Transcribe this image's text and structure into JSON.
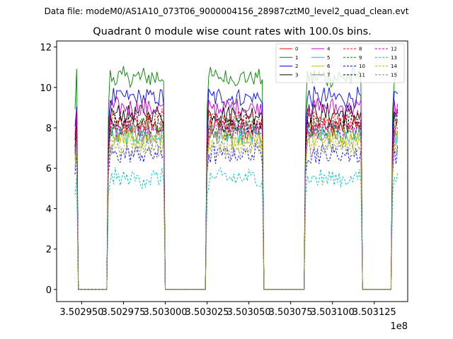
{
  "chart_data": {
    "type": "line",
    "suptitle": "Data file: modeM0/AS1A10_073T06_9000004156_28987cztM0_level2_quad_clean.evt",
    "title": "Quadrant 0 module wise count rates with 100.0s bins.",
    "xlabel": "",
    "ylabel": "",
    "x_offset_label": "1e8",
    "xlim": [
      3.502935,
      3.503145
    ],
    "ylim": [
      -0.6,
      12.3
    ],
    "x_ticks": [
      3.50295,
      3.502975,
      3.503,
      3.503025,
      3.50305,
      3.503075,
      3.5031,
      3.503125
    ],
    "x_tick_labels": [
      "3.502950",
      "3.502975",
      "3.503000",
      "3.503025",
      "3.503050",
      "3.503075",
      "3.503100",
      "3.503125"
    ],
    "y_ticks": [
      0,
      2,
      4,
      6,
      8,
      10,
      12
    ],
    "y_tick_labels": [
      "0",
      "2",
      "4",
      "6",
      "8",
      "10",
      "12"
    ],
    "segments": [
      [
        3.502946,
        3.502947
      ],
      [
        3.502966,
        3.502999
      ],
      [
        3.503025,
        3.503058
      ],
      [
        3.503084,
        3.503117
      ],
      [
        3.503136,
        3.503139
      ]
    ],
    "gap_value": 0,
    "bin_seconds": 100,
    "legend_position": "top-right",
    "series": [
      {
        "name": "0",
        "color": "#ff0000",
        "dash": "solid",
        "level": 8.1
      },
      {
        "name": "1",
        "color": "#008000",
        "dash": "solid",
        "level": 10.5
      },
      {
        "name": "2",
        "color": "#0000ff",
        "dash": "solid",
        "level": 9.5
      },
      {
        "name": "3",
        "color": "#000000",
        "dash": "solid",
        "level": 8.7
      },
      {
        "name": "4",
        "color": "#c000c0",
        "dash": "solid",
        "level": 9.0
      },
      {
        "name": "5",
        "color": "#00bfbf",
        "dash": "solid",
        "level": 7.6
      },
      {
        "name": "6",
        "color": "#bfbf00",
        "dash": "solid",
        "level": 7.5
      },
      {
        "name": "7",
        "color": "#808080",
        "dash": "solid",
        "level": 7.8
      },
      {
        "name": "8",
        "color": "#ff0000",
        "dash": "dashed",
        "level": 8.4
      },
      {
        "name": "9",
        "color": "#008000",
        "dash": "dashed",
        "level": 8.0
      },
      {
        "name": "10",
        "color": "#0000ff",
        "dash": "dashed",
        "level": 6.7
      },
      {
        "name": "11",
        "color": "#000000",
        "dash": "dashed",
        "level": 8.3
      },
      {
        "name": "12",
        "color": "#c000c0",
        "dash": "dashed",
        "level": 7.9
      },
      {
        "name": "13",
        "color": "#00bfbf",
        "dash": "dashed",
        "level": 5.5
      },
      {
        "name": "14",
        "color": "#bfbf00",
        "dash": "dashed",
        "level": 7.2
      },
      {
        "name": "15",
        "color": "#808080",
        "dash": "dashed",
        "level": 7.0
      }
    ]
  }
}
